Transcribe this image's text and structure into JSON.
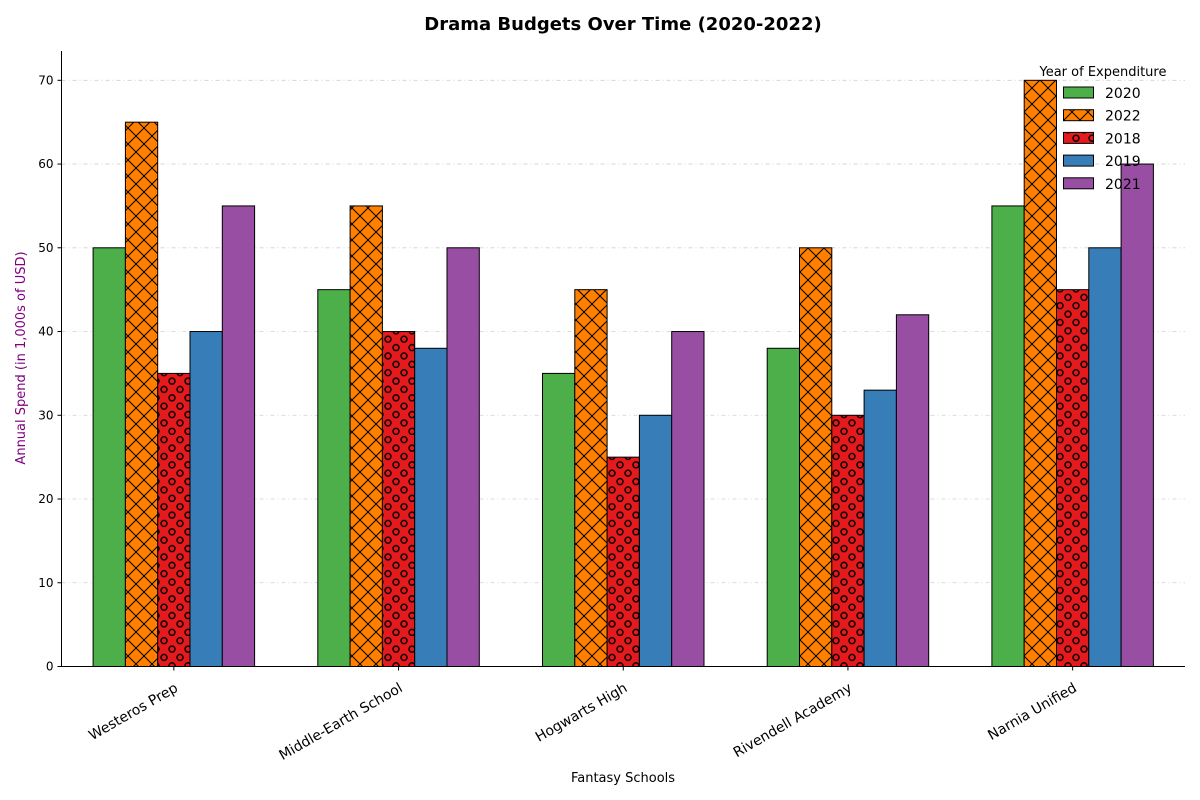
{
  "chart_data": {
    "type": "bar",
    "title": "Drama Budgets Over Time (2020-2022)",
    "xlabel": "Fantasy Schools",
    "ylabel": "Annual Spend (in 1,000s of USD)",
    "ylabel_color": "#800080",
    "ylim": [
      0,
      73.5
    ],
    "yticks": [
      0,
      10,
      20,
      30,
      40,
      50,
      60,
      70
    ],
    "grid": "y-dashed",
    "legend_title": "Year of Expenditure",
    "legend_position": "top-right",
    "categories": [
      "Westeros Prep",
      "Middle-Earth School",
      "Hogwarts High",
      "Rivendell Academy",
      "Narnia Unified"
    ],
    "series": [
      {
        "name": "2020",
        "color": "#4daf4a",
        "hatch": "none",
        "values": [
          50,
          45,
          35,
          38,
          55
        ]
      },
      {
        "name": "2022",
        "color": "#ff7f00",
        "hatch": "cross",
        "values": [
          65,
          55,
          45,
          50,
          70
        ]
      },
      {
        "name": "2018",
        "color": "#e41a1c",
        "hatch": "circles",
        "values": [
          35,
          40,
          25,
          30,
          45
        ]
      },
      {
        "name": "2019",
        "color": "#377eb8",
        "hatch": "none",
        "values": [
          40,
          38,
          30,
          33,
          50
        ]
      },
      {
        "name": "2021",
        "color": "#984ea3",
        "hatch": "none",
        "values": [
          55,
          50,
          40,
          42,
          60
        ]
      }
    ]
  }
}
